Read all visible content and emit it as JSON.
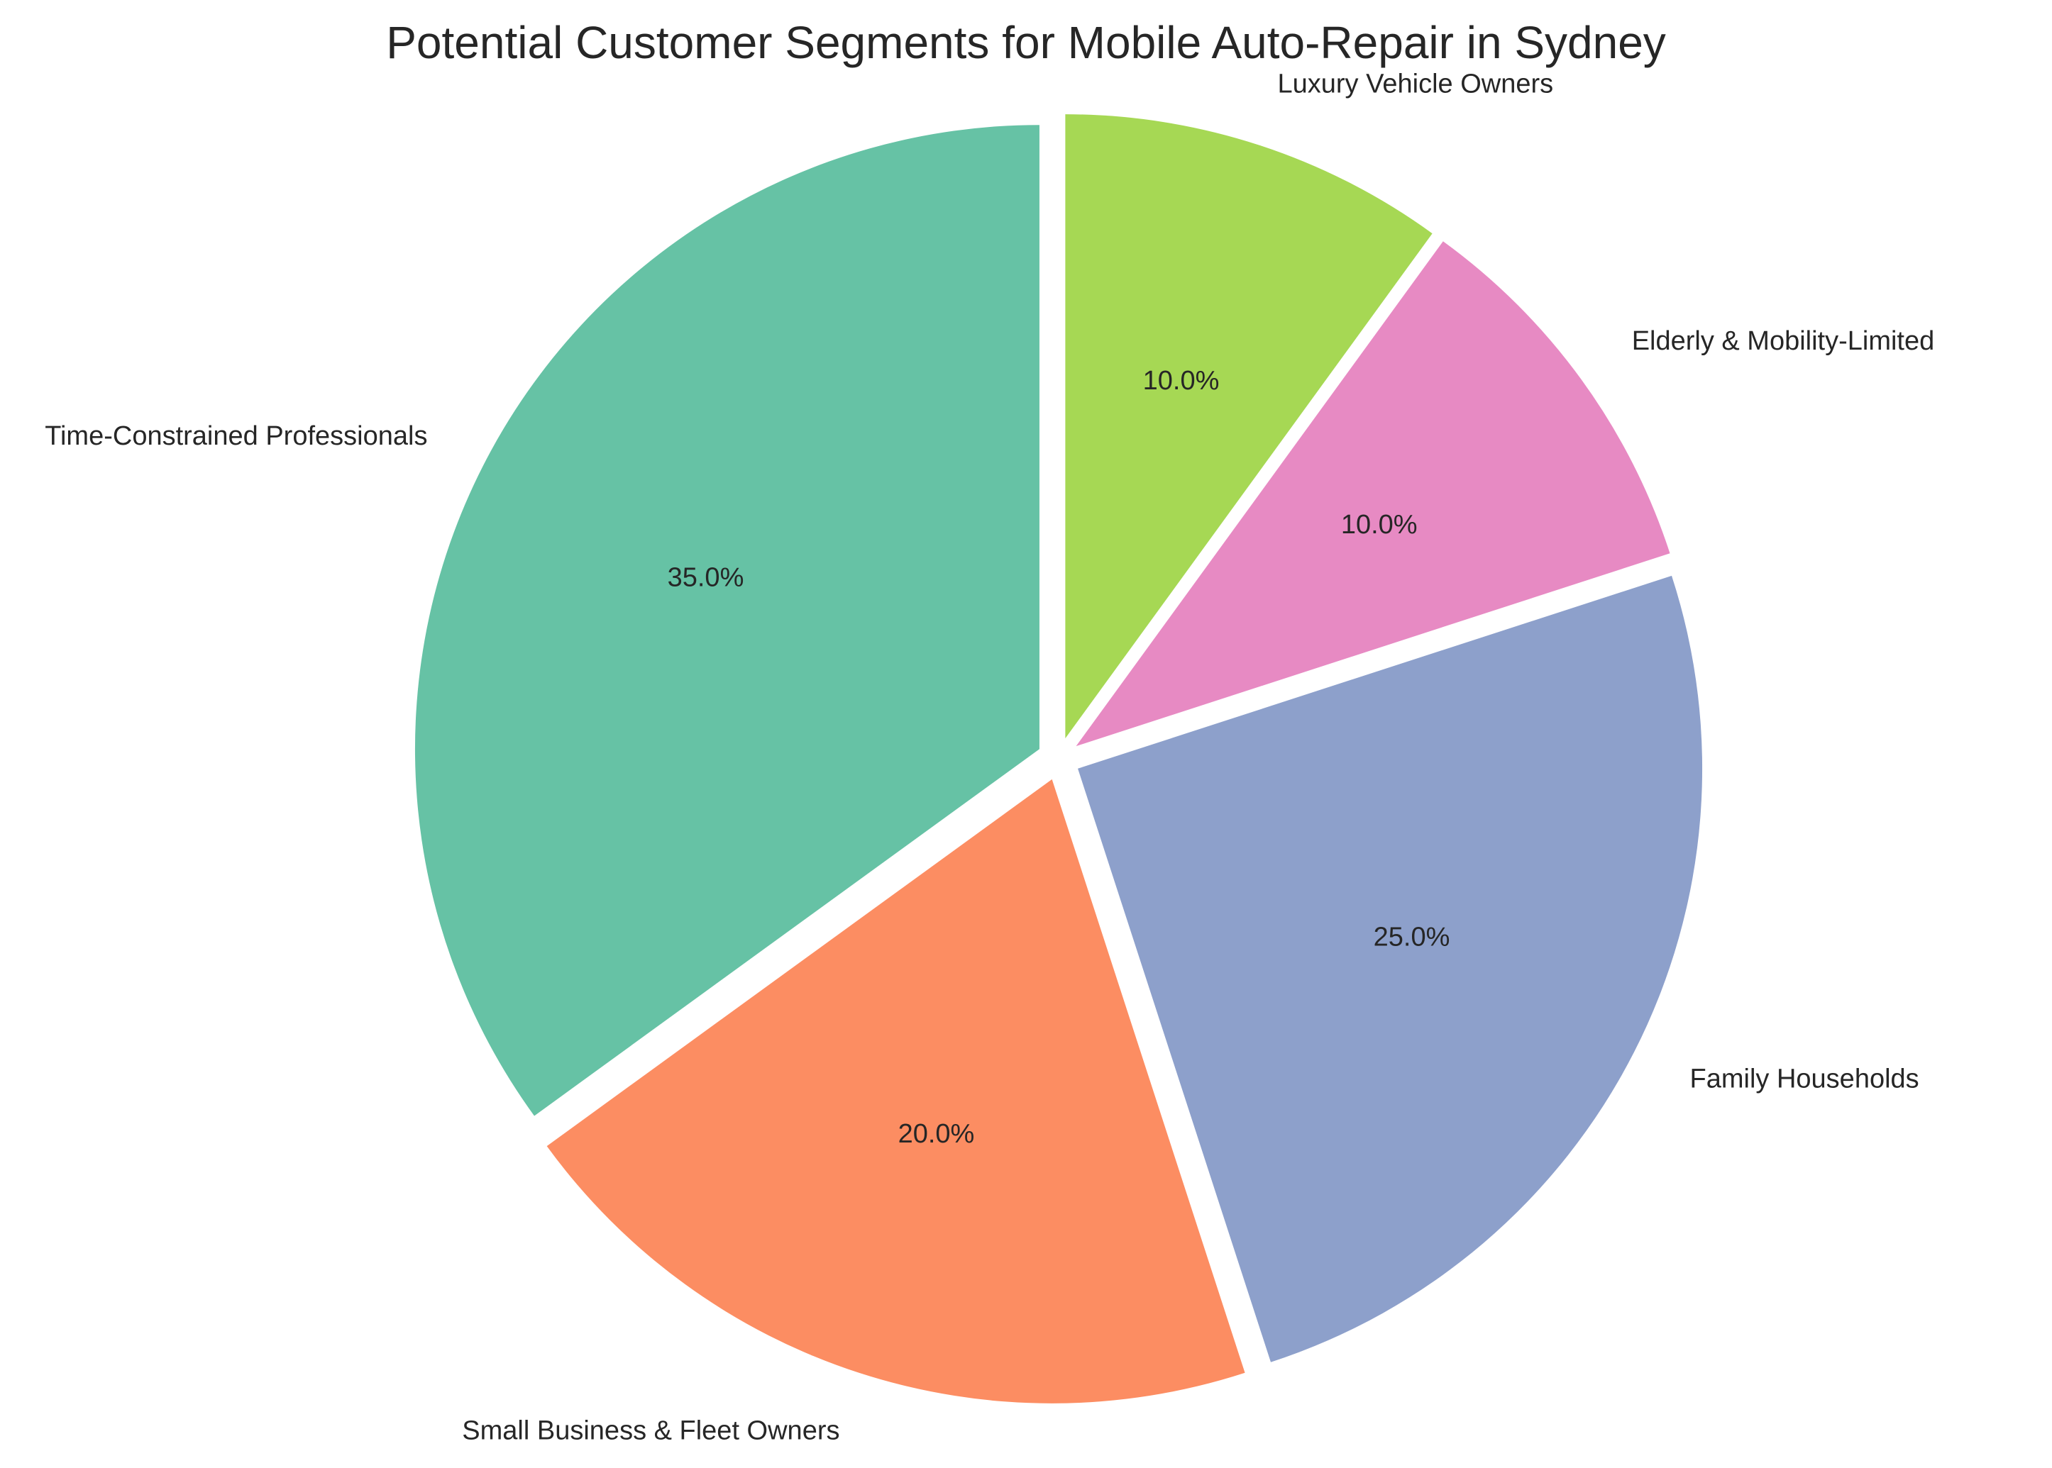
{
  "chart_data": {
    "type": "pie",
    "title": "Potential Customer Segments for Mobile Auto-Repair in Sydney",
    "categories": [
      "Time-Constrained Professionals",
      "Small Business & Fleet Owners",
      "Family Households",
      "Elderly & Mobility-Limited",
      "Luxury Vehicle Owners"
    ],
    "values": [
      35,
      20,
      25,
      10,
      10
    ],
    "percent_labels": [
      "35.0%",
      "20.0%",
      "25.0%",
      "10.0%",
      "10.0%"
    ],
    "colors": [
      "#66c2a5",
      "#fc8d62",
      "#8da0cb",
      "#e78ac3",
      "#a6d854"
    ],
    "start_angle_deg": 90,
    "direction": "counterclockwise",
    "exploded": true,
    "legend": "none"
  }
}
